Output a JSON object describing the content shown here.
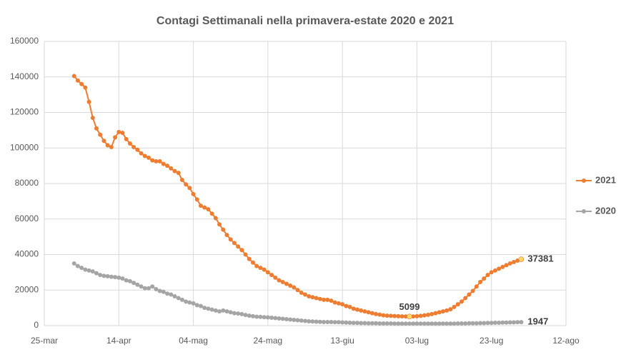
{
  "chart_data": {
    "type": "line",
    "title": "Contagi Settimanali nella primavera-estate 2020 e 2021",
    "x": [
      8,
      9,
      10,
      11,
      12,
      13,
      14,
      15,
      16,
      17,
      18,
      19,
      20,
      21,
      22,
      23,
      24,
      25,
      26,
      27,
      28,
      29,
      30,
      31,
      32,
      33,
      34,
      35,
      36,
      37,
      38,
      39,
      40,
      41,
      42,
      43,
      44,
      45,
      46,
      47,
      48,
      49,
      50,
      51,
      52,
      53,
      54,
      55,
      56,
      57,
      58,
      59,
      60,
      61,
      62,
      63,
      64,
      65,
      66,
      67,
      68,
      69,
      70,
      71,
      72,
      73,
      74,
      75,
      76,
      77,
      78,
      79,
      80,
      81,
      82,
      83,
      84,
      85,
      86,
      87,
      88,
      89,
      90,
      91,
      92,
      93,
      94,
      95,
      96,
      97,
      98,
      99,
      100,
      101,
      102,
      103,
      104,
      105,
      106,
      107,
      108,
      109,
      110,
      111,
      112,
      113,
      114,
      115,
      116,
      117,
      118,
      119,
      120,
      121,
      122,
      123,
      124,
      125,
      126,
      127,
      128
    ],
    "series": [
      {
        "name": "2021",
        "color": "#ed7d31",
        "values": [
          140500,
          138000,
          136000,
          134000,
          126000,
          117000,
          111000,
          107500,
          104000,
          101500,
          100500,
          106000,
          109000,
          108500,
          105000,
          102500,
          100500,
          99000,
          97000,
          95500,
          94500,
          93000,
          92500,
          92500,
          91000,
          90000,
          88500,
          87000,
          86000,
          82000,
          79500,
          77500,
          74000,
          71000,
          67500,
          66500,
          65500,
          63000,
          60500,
          57000,
          54000,
          51000,
          48500,
          46500,
          44500,
          42500,
          40000,
          37500,
          35500,
          33500,
          32500,
          31500,
          30000,
          28500,
          27000,
          25500,
          24500,
          23500,
          22500,
          21500,
          20000,
          18500,
          17500,
          16500,
          16000,
          15500,
          15000,
          14500,
          14500,
          14000,
          13000,
          12500,
          12000,
          11000,
          10500,
          9500,
          9000,
          8500,
          8000,
          7500,
          7000,
          6500,
          6200,
          5800,
          5600,
          5500,
          5400,
          5300,
          5200,
          5150,
          5099,
          5150,
          5300,
          5500,
          5800,
          6100,
          6500,
          7000,
          7500,
          8000,
          8500,
          9200,
          10500,
          12000,
          13500,
          15500,
          17500,
          19500,
          22000,
          24500,
          26500,
          28500,
          30000,
          31000,
          32000,
          33000,
          34000,
          35000,
          35800,
          36600,
          37381
        ]
      },
      {
        "name": "2020",
        "color": "#a5a5a5",
        "values": [
          35000,
          33500,
          32500,
          31500,
          31000,
          30500,
          29500,
          28500,
          28000,
          27800,
          27500,
          27300,
          27000,
          26500,
          25500,
          25000,
          24000,
          23000,
          22000,
          21000,
          21000,
          22000,
          20500,
          19500,
          19000,
          18000,
          17500,
          16500,
          15500,
          14500,
          13500,
          13000,
          12500,
          11500,
          11000,
          10000,
          9500,
          9000,
          8500,
          8000,
          8500,
          8000,
          7500,
          7000,
          6800,
          6500,
          6000,
          5600,
          5300,
          5000,
          4900,
          4700,
          4600,
          4400,
          4200,
          4000,
          3800,
          3600,
          3400,
          3200,
          3000,
          2800,
          2600,
          2400,
          2300,
          2200,
          2100,
          2000,
          2000,
          2000,
          1900,
          1900,
          1800,
          1700,
          1600,
          1500,
          1500,
          1400,
          1400,
          1300,
          1300,
          1300,
          1200,
          1200,
          1200,
          1200,
          1100,
          1100,
          1100,
          1100,
          1100,
          1100,
          1100,
          1100,
          1100,
          1100,
          1100,
          1100,
          1100,
          1100,
          1100,
          1100,
          1100,
          1200,
          1200,
          1200,
          1300,
          1300,
          1300,
          1400,
          1400,
          1500,
          1500,
          1600,
          1600,
          1700,
          1700,
          1800,
          1800,
          1900,
          1947
        ]
      }
    ],
    "data_labels": [
      {
        "series": 0,
        "index": 90,
        "highlight": true,
        "position": "above"
      },
      {
        "series": 0,
        "index": 120,
        "highlight": true,
        "position": "right"
      },
      {
        "series": 1,
        "index": 120,
        "highlight": false,
        "position": "right"
      }
    ],
    "highlight_color": "#ffd966",
    "xlim": [
      0,
      140
    ],
    "xticks": [
      {
        "value": 0,
        "label": "25-mar"
      },
      {
        "value": 20,
        "label": "14-apr"
      },
      {
        "value": 40,
        "label": "04-mag"
      },
      {
        "value": 60,
        "label": "24-mag"
      },
      {
        "value": 80,
        "label": "13-giu"
      },
      {
        "value": 100,
        "label": "03-lug"
      },
      {
        "value": 120,
        "label": "23-lug"
      },
      {
        "value": 140,
        "label": "12-ago"
      }
    ],
    "ylim": [
      0,
      160000
    ],
    "yticks": [
      0,
      20000,
      40000,
      60000,
      80000,
      100000,
      120000,
      140000,
      160000
    ],
    "grid": true,
    "legend": "right"
  }
}
